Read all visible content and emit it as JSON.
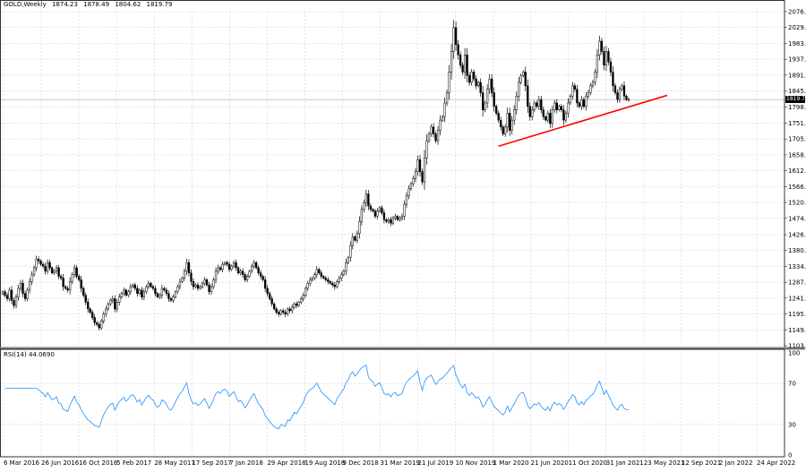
{
  "header": {
    "symbol": "GOLD,Weekly",
    "open": "1874.23",
    "high": "1878.49",
    "low": "1804.62",
    "close": "1819.79"
  },
  "rsi": {
    "label": "RSI(14) 44.0690",
    "levels": [
      "100",
      "70",
      "30",
      "0"
    ],
    "line_color": "#1e90ff"
  },
  "last_price_badge": "1819.79",
  "colors": {
    "candle": "#000000",
    "grid": "#c8c8c8",
    "trendline": "#ff0000",
    "rsi": "#1e90ff",
    "separator": "#808080"
  },
  "chart_data": [
    {
      "type": "candlestick",
      "title": "",
      "ylim": [
        1103.0,
        2076.0
      ],
      "y_ticks": [
        "2076.00",
        "2029.80",
        "1983.60",
        "1937.40",
        "1891.20",
        "1845.00",
        "1798.80",
        "1751.20",
        "1705.00",
        "1658.80",
        "1612.60",
        "1566.40",
        "1520.20",
        "1474.00",
        "1426.40",
        "1380.20",
        "1334.00",
        "1287.80",
        "1241.60",
        "1195.40",
        "1149.20",
        "1103.00"
      ],
      "x_ticks": [
        "6 Mar 2016",
        "26 Jun 2016",
        "16 Oct 2016",
        "5 Feb 2017",
        "28 May 2017",
        "17 Sep 2017",
        "7 Jan 2018",
        "29 Apr 2018",
        "19 Aug 2018",
        "9 Dec 2018",
        "31 Mar 2019",
        "21 Jul 2019",
        "10 Nov 2019",
        "1 Mar 2020",
        "21 Jun 2020",
        "11 Oct 2020",
        "31 Jan 2021",
        "23 May 2021",
        "12 Sep 2021",
        "2 Jan 2022",
        "24 Apr 2022"
      ],
      "series_close": [
        1260,
        1250,
        1240,
        1265,
        1235,
        1220,
        1245,
        1270,
        1285,
        1255,
        1240,
        1265,
        1290,
        1310,
        1330,
        1355,
        1350,
        1340,
        1335,
        1320,
        1345,
        1330,
        1315,
        1320,
        1330,
        1305,
        1300,
        1275,
        1270,
        1265,
        1290,
        1310,
        1330,
        1305,
        1295,
        1270,
        1250,
        1230,
        1210,
        1200,
        1185,
        1170,
        1165,
        1155,
        1175,
        1195,
        1210,
        1225,
        1235,
        1240,
        1210,
        1230,
        1245,
        1255,
        1265,
        1250,
        1260,
        1275,
        1280,
        1270,
        1255,
        1265,
        1245,
        1260,
        1275,
        1285,
        1275,
        1270,
        1255,
        1245,
        1250,
        1270,
        1265,
        1255,
        1240,
        1235,
        1245,
        1260,
        1275,
        1290,
        1300,
        1320,
        1345,
        1315,
        1290,
        1275,
        1280,
        1270,
        1275,
        1285,
        1295,
        1280,
        1260,
        1275,
        1295,
        1320,
        1330,
        1325,
        1340,
        1345,
        1340,
        1325,
        1335,
        1345,
        1330,
        1315,
        1320,
        1310,
        1295,
        1305,
        1320,
        1335,
        1345,
        1330,
        1315,
        1305,
        1295,
        1270,
        1255,
        1240,
        1225,
        1210,
        1200,
        1195,
        1205,
        1200,
        1195,
        1210,
        1205,
        1215,
        1225,
        1220,
        1230,
        1240,
        1250,
        1270,
        1285,
        1295,
        1300,
        1310,
        1325,
        1315,
        1305,
        1300,
        1295,
        1290,
        1285,
        1280,
        1275,
        1290,
        1300,
        1310,
        1320,
        1345,
        1360,
        1395,
        1420,
        1410,
        1430,
        1465,
        1500,
        1520,
        1545,
        1510,
        1500,
        1495,
        1480,
        1495,
        1505,
        1490,
        1470,
        1465,
        1470,
        1460,
        1475,
        1480,
        1470,
        1475,
        1480,
        1515,
        1540,
        1560,
        1575,
        1590,
        1610,
        1645,
        1610,
        1580,
        1650,
        1700,
        1720,
        1740,
        1720,
        1700,
        1730,
        1760,
        1770,
        1810,
        1840,
        1900,
        1960,
        2030,
        1980,
        1950,
        1920,
        1900,
        1950,
        1890,
        1870,
        1900,
        1880,
        1860,
        1870,
        1840,
        1790,
        1810,
        1850,
        1880,
        1840,
        1800,
        1780,
        1760,
        1740,
        1720,
        1740,
        1780,
        1730,
        1760,
        1790,
        1830,
        1870,
        1890,
        1900,
        1860,
        1800,
        1770,
        1790,
        1810,
        1800,
        1820,
        1790,
        1770,
        1760,
        1780,
        1750,
        1790,
        1810,
        1790,
        1800,
        1790,
        1760,
        1780,
        1810,
        1830,
        1860,
        1850,
        1810,
        1800,
        1820,
        1800,
        1830,
        1840,
        1860,
        1870,
        1900,
        1950,
        1990,
        1960,
        1920,
        1960,
        1930,
        1900,
        1860,
        1840,
        1820,
        1850,
        1860,
        1830,
        1820,
        1819.79
      ],
      "trendline": {
        "start": {
          "x_index": 221,
          "price": 1684
        },
        "end": {
          "x_index": 295,
          "price": 1830
        }
      },
      "current_price": 1819.79
    },
    {
      "type": "line",
      "title": "",
      "ylim": [
        0,
        100
      ],
      "levels": [
        70,
        30
      ]
    }
  ]
}
